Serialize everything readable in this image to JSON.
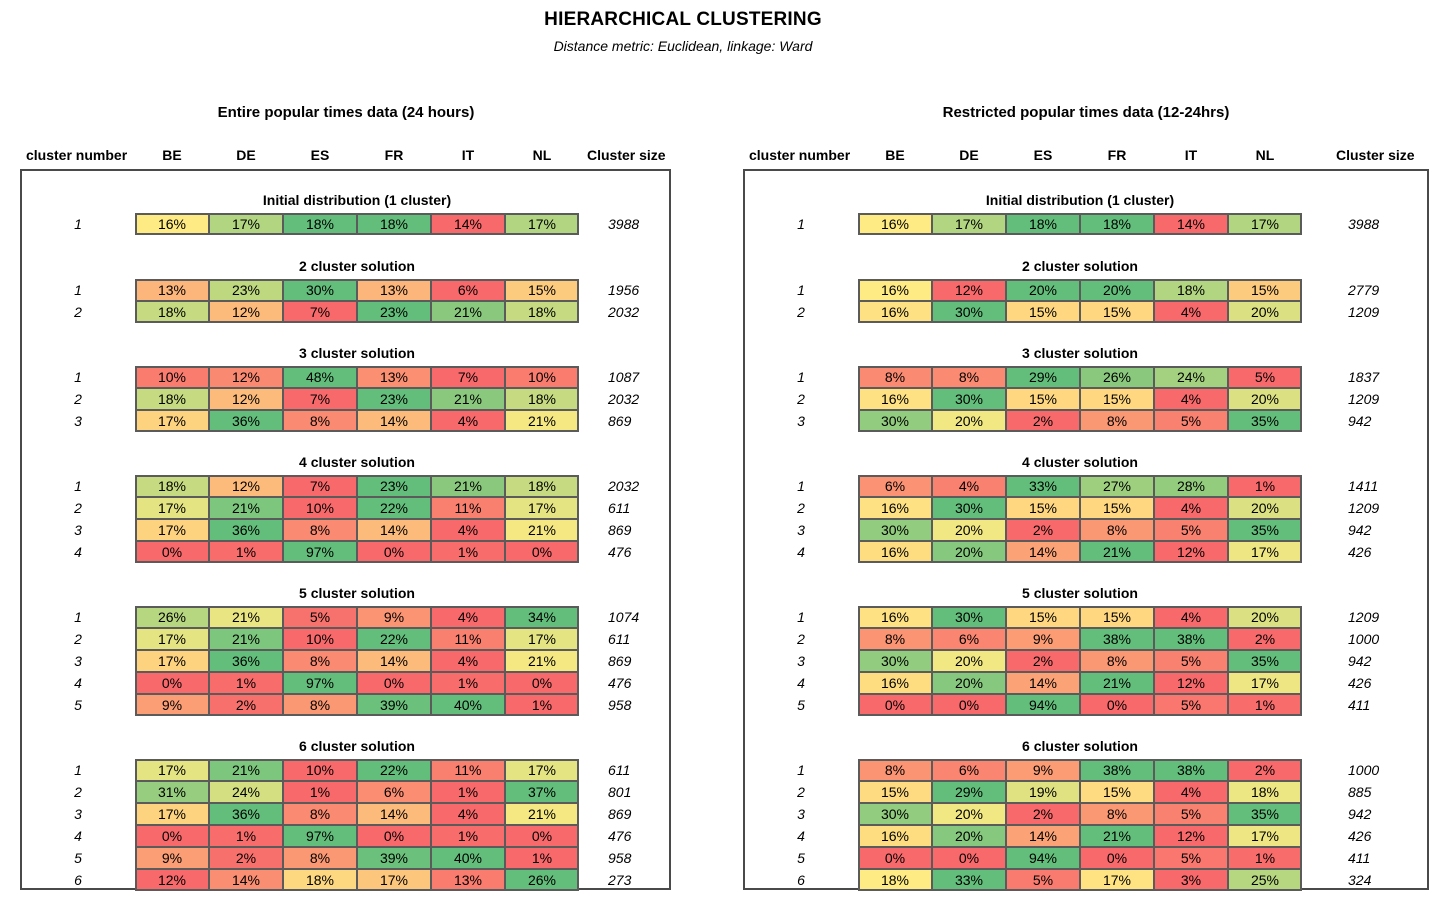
{
  "title": "HIERARCHICAL CLUSTERING",
  "subtitle": "Distance metric: Euclidean, linkage: Ward",
  "chart_data": {
    "type": "table",
    "columns": [
      "cluster number",
      "BE",
      "DE",
      "ES",
      "FR",
      "IT",
      "NL",
      "Cluster size"
    ],
    "colors": {
      "low": "#f8696b",
      "mid": "#ffeb84",
      "high": "#63be7b"
    },
    "panels": [
      {
        "title": "Entire popular times data (24 hours)",
        "groups": [
          {
            "title": "Initial distribution (1 cluster)",
            "rows": [
              {
                "n": "1",
                "values": [
                  16,
                  17,
                  18,
                  18,
                  14,
                  17
                ],
                "size": "3988"
              }
            ]
          },
          {
            "title": "2 cluster solution",
            "rows": [
              {
                "n": "1",
                "values": [
                  13,
                  23,
                  30,
                  13,
                  6,
                  15
                ],
                "size": "1956"
              },
              {
                "n": "2",
                "values": [
                  18,
                  12,
                  7,
                  23,
                  21,
                  18
                ],
                "size": "2032"
              }
            ]
          },
          {
            "title": "3 cluster solution",
            "rows": [
              {
                "n": "1",
                "values": [
                  10,
                  12,
                  48,
                  13,
                  7,
                  10
                ],
                "size": "1087"
              },
              {
                "n": "2",
                "values": [
                  18,
                  12,
                  7,
                  23,
                  21,
                  18
                ],
                "size": "2032"
              },
              {
                "n": "3",
                "values": [
                  17,
                  36,
                  8,
                  14,
                  4,
                  21
                ],
                "size": "869"
              }
            ]
          },
          {
            "title": "4 cluster solution",
            "rows": [
              {
                "n": "1",
                "values": [
                  18,
                  12,
                  7,
                  23,
                  21,
                  18
                ],
                "size": "2032"
              },
              {
                "n": "2",
                "values": [
                  17,
                  21,
                  10,
                  22,
                  11,
                  17
                ],
                "size": "611"
              },
              {
                "n": "3",
                "values": [
                  17,
                  36,
                  8,
                  14,
                  4,
                  21
                ],
                "size": "869"
              },
              {
                "n": "4",
                "values": [
                  0,
                  1,
                  97,
                  0,
                  1,
                  0
                ],
                "size": "476"
              }
            ]
          },
          {
            "title": "5 cluster solution",
            "rows": [
              {
                "n": "1",
                "values": [
                  26,
                  21,
                  5,
                  9,
                  4,
                  34
                ],
                "size": "1074"
              },
              {
                "n": "2",
                "values": [
                  17,
                  21,
                  10,
                  22,
                  11,
                  17
                ],
                "size": "611"
              },
              {
                "n": "3",
                "values": [
                  17,
                  36,
                  8,
                  14,
                  4,
                  21
                ],
                "size": "869"
              },
              {
                "n": "4",
                "values": [
                  0,
                  1,
                  97,
                  0,
                  1,
                  0
                ],
                "size": "476"
              },
              {
                "n": "5",
                "values": [
                  9,
                  2,
                  8,
                  39,
                  40,
                  1
                ],
                "size": "958"
              }
            ]
          },
          {
            "title": "6 cluster solution",
            "rows": [
              {
                "n": "1",
                "values": [
                  17,
                  21,
                  10,
                  22,
                  11,
                  17
                ],
                "size": "611"
              },
              {
                "n": "2",
                "values": [
                  31,
                  24,
                  1,
                  6,
                  1,
                  37
                ],
                "size": "801"
              },
              {
                "n": "3",
                "values": [
                  17,
                  36,
                  8,
                  14,
                  4,
                  21
                ],
                "size": "869"
              },
              {
                "n": "4",
                "values": [
                  0,
                  1,
                  97,
                  0,
                  1,
                  0
                ],
                "size": "476"
              },
              {
                "n": "5",
                "values": [
                  9,
                  2,
                  8,
                  39,
                  40,
                  1
                ],
                "size": "958"
              },
              {
                "n": "6",
                "values": [
                  12,
                  14,
                  18,
                  17,
                  13,
                  26
                ],
                "size": "273"
              }
            ]
          }
        ]
      },
      {
        "title": "Restricted popular times data (12-24hrs)",
        "groups": [
          {
            "title": "Initial distribution (1 cluster)",
            "rows": [
              {
                "n": "1",
                "values": [
                  16,
                  17,
                  18,
                  18,
                  14,
                  17
                ],
                "size": "3988"
              }
            ]
          },
          {
            "title": "2 cluster solution",
            "rows": [
              {
                "n": "1",
                "values": [
                  16,
                  12,
                  20,
                  20,
                  18,
                  15
                ],
                "size": "2779"
              },
              {
                "n": "2",
                "values": [
                  16,
                  30,
                  15,
                  15,
                  4,
                  20
                ],
                "size": "1209"
              }
            ]
          },
          {
            "title": "3 cluster solution",
            "rows": [
              {
                "n": "1",
                "values": [
                  8,
                  8,
                  29,
                  26,
                  24,
                  5
                ],
                "size": "1837"
              },
              {
                "n": "2",
                "values": [
                  16,
                  30,
                  15,
                  15,
                  4,
                  20
                ],
                "size": "1209"
              },
              {
                "n": "3",
                "values": [
                  30,
                  20,
                  2,
                  8,
                  5,
                  35
                ],
                "size": "942"
              }
            ]
          },
          {
            "title": "4 cluster solution",
            "rows": [
              {
                "n": "1",
                "values": [
                  6,
                  4,
                  33,
                  27,
                  28,
                  1
                ],
                "size": "1411"
              },
              {
                "n": "2",
                "values": [
                  16,
                  30,
                  15,
                  15,
                  4,
                  20
                ],
                "size": "1209"
              },
              {
                "n": "3",
                "values": [
                  30,
                  20,
                  2,
                  8,
                  5,
                  35
                ],
                "size": "942"
              },
              {
                "n": "4",
                "values": [
                  16,
                  20,
                  14,
                  21,
                  12,
                  17
                ],
                "size": "426"
              }
            ]
          },
          {
            "title": "5 cluster solution",
            "rows": [
              {
                "n": "1",
                "values": [
                  16,
                  30,
                  15,
                  15,
                  4,
                  20
                ],
                "size": "1209"
              },
              {
                "n": "2",
                "values": [
                  8,
                  6,
                  9,
                  38,
                  38,
                  2
                ],
                "size": "1000"
              },
              {
                "n": "3",
                "values": [
                  30,
                  20,
                  2,
                  8,
                  5,
                  35
                ],
                "size": "942"
              },
              {
                "n": "4",
                "values": [
                  16,
                  20,
                  14,
                  21,
                  12,
                  17
                ],
                "size": "426"
              },
              {
                "n": "5",
                "values": [
                  0,
                  0,
                  94,
                  0,
                  5,
                  1
                ],
                "size": "411"
              }
            ]
          },
          {
            "title": "6 cluster solution",
            "rows": [
              {
                "n": "1",
                "values": [
                  8,
                  6,
                  9,
                  38,
                  38,
                  2
                ],
                "size": "1000"
              },
              {
                "n": "2",
                "values": [
                  15,
                  29,
                  19,
                  15,
                  4,
                  18
                ],
                "size": "885"
              },
              {
                "n": "3",
                "values": [
                  30,
                  20,
                  2,
                  8,
                  5,
                  35
                ],
                "size": "942"
              },
              {
                "n": "4",
                "values": [
                  16,
                  20,
                  14,
                  21,
                  12,
                  17
                ],
                "size": "426"
              },
              {
                "n": "5",
                "values": [
                  0,
                  0,
                  94,
                  0,
                  5,
                  1
                ],
                "size": "411"
              },
              {
                "n": "6",
                "values": [
                  18,
                  33,
                  5,
                  17,
                  3,
                  25
                ],
                "size": "324"
              }
            ]
          }
        ]
      }
    ]
  }
}
